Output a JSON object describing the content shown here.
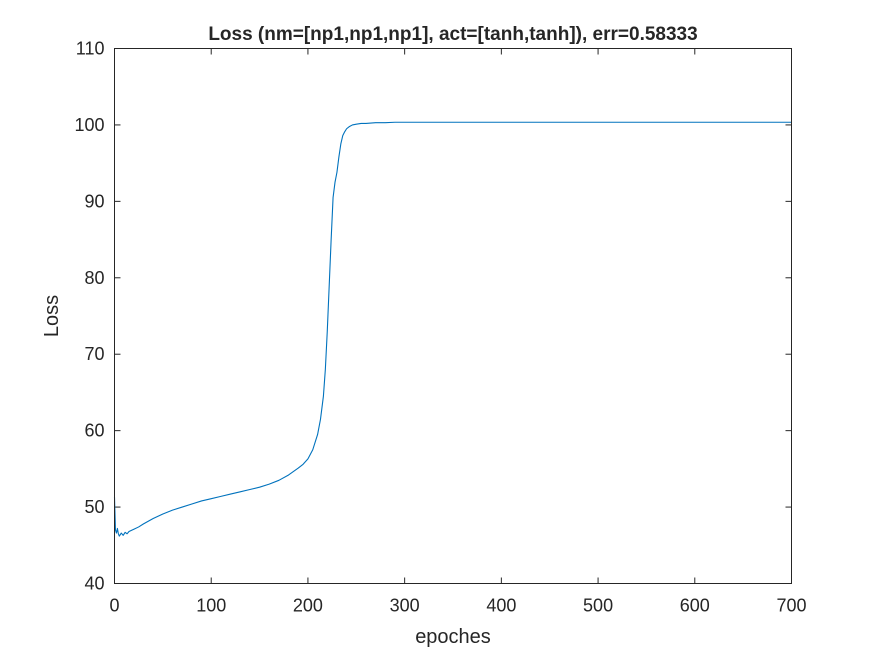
{
  "chart_data": {
    "type": "line",
    "title": "Loss (nm=[np1,np1,np1], act=[tanh,tanh]), err=0.58333",
    "xlabel": "epoches",
    "ylabel": "Loss",
    "xlim": [
      0,
      700
    ],
    "ylim": [
      40,
      110
    ],
    "xticks": [
      "0",
      "100",
      "200",
      "300",
      "400",
      "500",
      "600",
      "700"
    ],
    "yticks": [
      "40",
      "50",
      "60",
      "70",
      "80",
      "90",
      "100",
      "110"
    ],
    "grid": false,
    "legend": "none",
    "line_color": "#0072BD",
    "series": [
      {
        "x": [
          0,
          1,
          2,
          3,
          4,
          5,
          7,
          9,
          11,
          13,
          15,
          20,
          25,
          30,
          40,
          50,
          60,
          70,
          80,
          90,
          100,
          110,
          120,
          130,
          140,
          150,
          160,
          170,
          180,
          190,
          195,
          200,
          205,
          210,
          213,
          216,
          218,
          220,
          222,
          224,
          226,
          228,
          230,
          232,
          234,
          236,
          238,
          240,
          243,
          246,
          250,
          255,
          260,
          270,
          280,
          290,
          300,
          320,
          350,
          400,
          500,
          600,
          700
        ],
        "y": [
          51.3,
          47.0,
          46.6,
          47.2,
          46.5,
          46.2,
          46.6,
          46.3,
          46.7,
          46.5,
          46.8,
          47.1,
          47.4,
          47.8,
          48.5,
          49.1,
          49.6,
          50.0,
          50.4,
          50.8,
          51.1,
          51.4,
          51.7,
          52.0,
          52.3,
          52.6,
          53.0,
          53.5,
          54.2,
          55.1,
          55.6,
          56.3,
          57.5,
          59.5,
          61.5,
          64.5,
          68.0,
          73.0,
          79.0,
          85.0,
          90.5,
          92.5,
          93.8,
          95.8,
          97.5,
          98.6,
          99.1,
          99.5,
          99.8,
          100.0,
          100.1,
          100.2,
          100.2,
          100.3,
          100.3,
          100.35,
          100.35,
          100.35,
          100.35,
          100.35,
          100.35,
          100.35,
          100.35
        ]
      }
    ]
  }
}
